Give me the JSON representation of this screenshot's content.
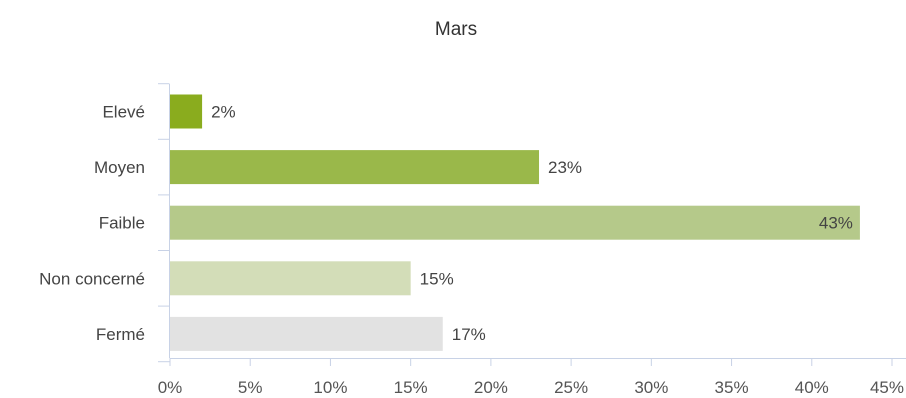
{
  "chart_data": {
    "type": "bar",
    "orientation": "horizontal",
    "title": "Mars",
    "xlabel": "",
    "ylabel": "",
    "categories": [
      "Elevé",
      "Moyen",
      "Faible",
      "Non concerné",
      "Fermé"
    ],
    "values": [
      2,
      23,
      43,
      15,
      17
    ],
    "value_labels": [
      "2%",
      "23%",
      "43%",
      "15%",
      "17%"
    ],
    "colors": [
      "#8aac1e",
      "#9ab84a",
      "#b5c98a",
      "#d3ddb8",
      "#e2e2e2"
    ],
    "xlim": [
      0,
      45
    ],
    "x_ticks": [
      0,
      5,
      10,
      15,
      20,
      25,
      30,
      35,
      40,
      45
    ],
    "x_tick_labels": [
      "0%",
      "5%",
      "10%",
      "15%",
      "20%",
      "25%",
      "30%",
      "35%",
      "40%",
      "45%"
    ],
    "grid": false,
    "legend": "none"
  }
}
